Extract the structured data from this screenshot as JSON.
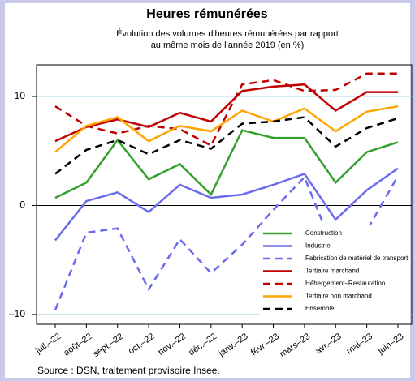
{
  "chart_data": {
    "type": "line",
    "title": "Heures rémunérées",
    "subtitle": [
      "Évolution des volumes d'heures rémunérées par rapport",
      "au même mois de l'année 2019 (en %)"
    ],
    "source": "Source : DSN, traitement provisoire Insee.",
    "categories": [
      "juil.–22",
      "août–22",
      "sept.–22",
      "oct.–22",
      "nov.–22",
      "déc.–22",
      "janv.–23",
      "févr.–23",
      "mars–23",
      "avr.–23",
      "mai–23",
      "juin–23"
    ],
    "ylim": [
      -10.9,
      12.9
    ],
    "yticks": [
      {
        "value": -10,
        "label": "–10"
      },
      0,
      10
    ],
    "grid": true,
    "legend": "bottom-right",
    "series": [
      {
        "name": "Construction",
        "color": "#33a02c",
        "dash": false,
        "values": [
          0.7,
          2.1,
          6.0,
          2.4,
          3.8,
          1.0,
          6.9,
          6.2,
          6.2,
          2.1,
          4.9,
          5.8
        ]
      },
      {
        "name": "Industrie",
        "color": "#6b6bef",
        "dash": false,
        "values": [
          -3.2,
          0.4,
          1.2,
          -0.6,
          1.9,
          0.7,
          1.0,
          1.9,
          2.9,
          -1.3,
          1.4,
          3.4
        ]
      },
      {
        "name": "Fabrication de matériel de transport",
        "color": "#6b6bef",
        "dash": true,
        "values": [
          -9.6,
          -2.5,
          -2.1,
          -7.7,
          -3.1,
          -6.2,
          -3.6,
          -0.4,
          2.6,
          -4.5,
          -2.3,
          2.7
        ]
      },
      {
        "name": "Tertiaire marchand",
        "color": "#c00000",
        "dash": false,
        "values": [
          5.9,
          7.2,
          7.9,
          7.2,
          8.5,
          7.7,
          10.5,
          10.9,
          11.1,
          8.7,
          10.4,
          10.4
        ]
      },
      {
        "name": "Hébergement–Restauration",
        "color": "#c00000",
        "dash": true,
        "values": [
          9.1,
          7.3,
          6.6,
          7.3,
          7.0,
          5.5,
          11.1,
          11.5,
          10.5,
          10.6,
          12.1,
          12.1
        ]
      },
      {
        "name": "Tertiaire non marchand",
        "color": "#ffa500",
        "dash": false,
        "values": [
          4.9,
          7.3,
          8.1,
          5.9,
          7.3,
          6.8,
          8.7,
          7.7,
          8.9,
          6.8,
          8.6,
          9.1
        ]
      },
      {
        "name": "Ensemble",
        "color": "#000000",
        "dash": true,
        "values": [
          2.9,
          5.1,
          6.0,
          4.7,
          6.0,
          5.2,
          7.5,
          7.7,
          8.1,
          5.4,
          7.1,
          8.0
        ]
      }
    ]
  }
}
